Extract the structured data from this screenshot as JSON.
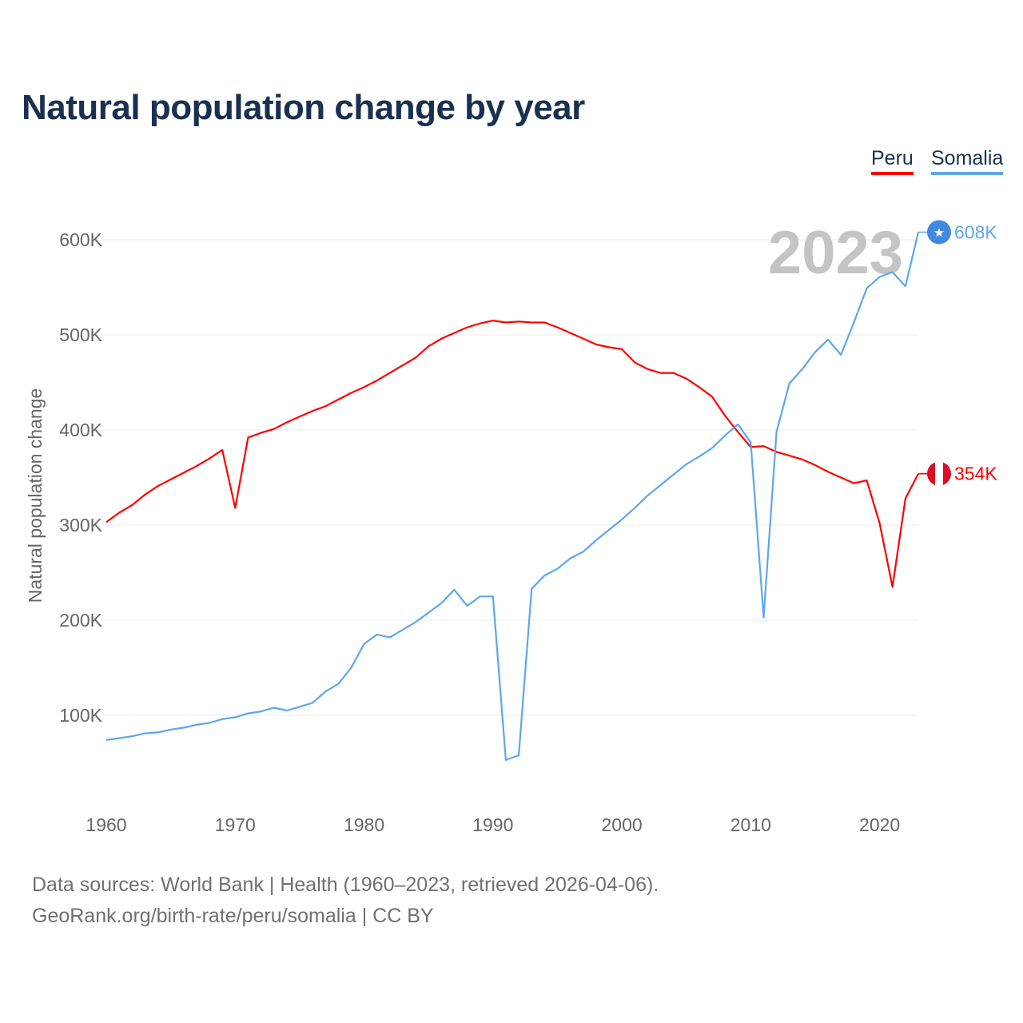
{
  "title": "Natural population change by year",
  "legend": {
    "peru": "Peru",
    "somalia": "Somalia"
  },
  "footer": {
    "line1": "Data sources: World Bank | Health (1960–2023, retrieved 2026-04-06).",
    "line2": "GeoRank.org/birth-rate/peru/somalia | CC BY"
  },
  "chart_data": {
    "type": "line",
    "title": "Natural population change by year",
    "xlabel": "",
    "ylabel": "Natural population change",
    "year_label": "2023",
    "xlim": [
      1960,
      2023
    ],
    "ylim": [
      30000,
      640000
    ],
    "x_ticks": [
      1960,
      1970,
      1980,
      1990,
      2000,
      2010,
      2020
    ],
    "y_ticks": [
      100000,
      200000,
      300000,
      400000,
      500000,
      600000
    ],
    "y_tick_labels": [
      "100K",
      "200K",
      "300K",
      "400K",
      "500K",
      "600K"
    ],
    "grid": true,
    "legend_position": "top-right",
    "x_start": 1960,
    "series": [
      {
        "name": "Peru",
        "color": "#ff0000",
        "icon": "peru-flag-icon",
        "end_label": "354K",
        "values_k": [
          303,
          313,
          321,
          332,
          341,
          348,
          355,
          362,
          370,
          379,
          318,
          392,
          397,
          401,
          408,
          414,
          420,
          425,
          432,
          439,
          445,
          452,
          460,
          468,
          476,
          488,
          496,
          502,
          508,
          512,
          515,
          513,
          514,
          513,
          513,
          508,
          502,
          496,
          490,
          487,
          485,
          471,
          464,
          460,
          460,
          454,
          445,
          435,
          415,
          398,
          382,
          383,
          377,
          373,
          369,
          363,
          356,
          350,
          344,
          347,
          302,
          235,
          328,
          354
        ]
      },
      {
        "name": "Somalia",
        "color": "#5ea6ec",
        "icon": "somalia-flag-icon",
        "end_label": "608K",
        "values_k": [
          74,
          76,
          78,
          81,
          82,
          85,
          87,
          90,
          92,
          96,
          98,
          102,
          104,
          108,
          105,
          109,
          113,
          125,
          133,
          150,
          175,
          185,
          182,
          190,
          198,
          208,
          218,
          232,
          215,
          225,
          225,
          53,
          58,
          233,
          247,
          254,
          265,
          272,
          284,
          295,
          306,
          318,
          331,
          342,
          353,
          364,
          372,
          381,
          394,
          406,
          387,
          203,
          398,
          449,
          464,
          482,
          495,
          479,
          513,
          549,
          561,
          566,
          551,
          608
        ]
      }
    ]
  }
}
